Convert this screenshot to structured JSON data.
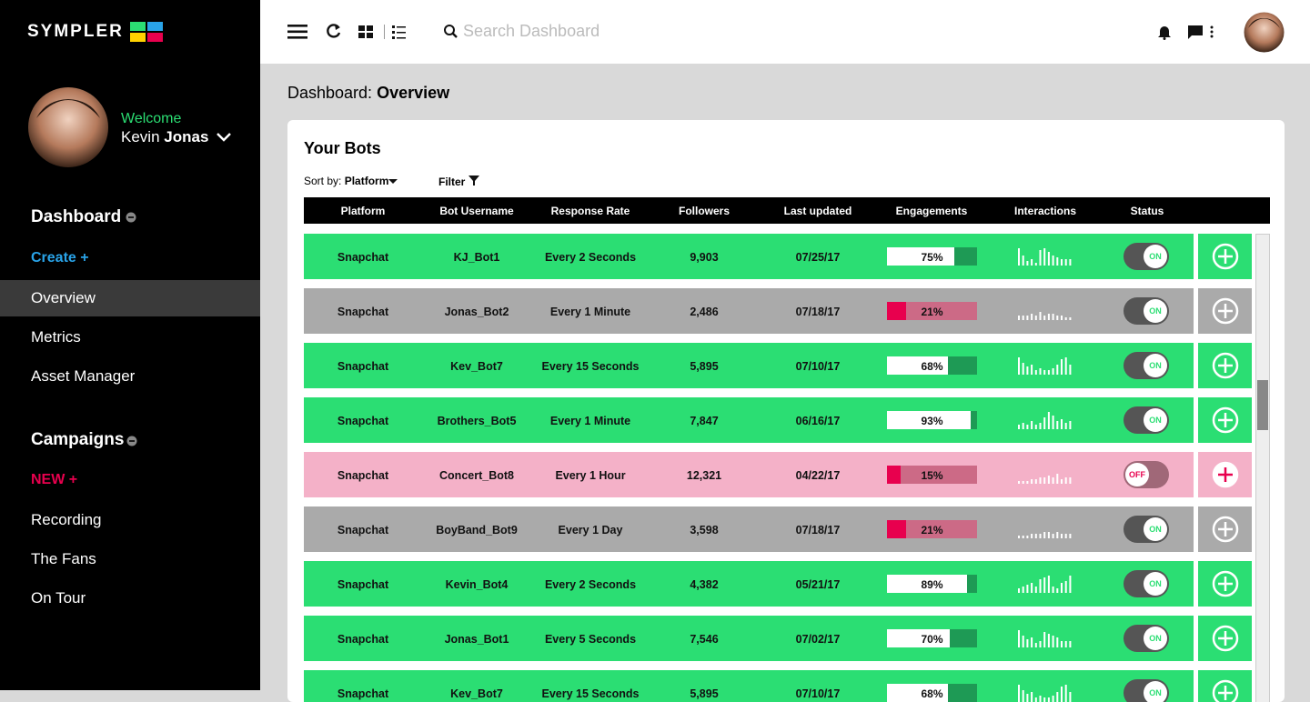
{
  "brand": "SYMPLER",
  "user": {
    "greeting": "Welcome",
    "first_name": "Kevin",
    "last_name": "Jonas"
  },
  "nav": {
    "dashboard": {
      "title": "Dashboard",
      "create": "Create +",
      "items": [
        "Overview",
        "Metrics",
        "Asset Manager"
      ]
    },
    "campaigns": {
      "title": "Campaigns",
      "new": "NEW +",
      "items": [
        "Recording",
        "The Fans",
        "On Tour"
      ]
    }
  },
  "search_placeholder": "Search Dashboard",
  "breadcrumb": {
    "prefix": "Dashboard:",
    "page": "Overview"
  },
  "card": {
    "title": "Your Bots",
    "sort_label": "Sort by:",
    "sort_value": "Platform",
    "filter": "Filter"
  },
  "table": {
    "columns": [
      "Platform",
      "Bot Username",
      "Response Rate",
      "Followers",
      "Last updated",
      "Engagements",
      "Interactions",
      "Status"
    ],
    "rows": [
      {
        "platform": "Snapchat",
        "username": "KJ_Bot1",
        "response_rate": "Every 2 Seconds",
        "followers": "9,903",
        "last_updated": "07/25/17",
        "engagement": {
          "value": 75,
          "label": "75%"
        },
        "interactions": [
          9,
          5,
          2,
          3,
          1,
          8,
          9,
          7,
          5,
          4,
          3,
          3,
          3
        ],
        "status": "ON",
        "color": "#2bde73"
      },
      {
        "platform": "Snapchat",
        "username": "Jonas_Bot2",
        "response_rate": "Every 1 Minute",
        "followers": "2,486",
        "last_updated": "07/18/17",
        "engagement": {
          "value": 21,
          "label": "21%"
        },
        "interactions": [
          2,
          2,
          2,
          3,
          2,
          4,
          2,
          3,
          3,
          2,
          2,
          1,
          1
        ],
        "status": "ON",
        "color": "#aaaaaa"
      },
      {
        "platform": "Snapchat",
        "username": "Kev_Bot7",
        "response_rate": "Every 15 Seconds",
        "followers": "5,895",
        "last_updated": "07/10/17",
        "engagement": {
          "value": 68,
          "label": "68%"
        },
        "interactions": [
          9,
          6,
          4,
          5,
          2,
          3,
          2,
          2,
          3,
          5,
          8,
          9,
          5
        ],
        "status": "ON",
        "color": "#2bde73"
      },
      {
        "platform": "Snapchat",
        "username": "Brothers_Bot5",
        "response_rate": "Every 1 Minute",
        "followers": "7,847",
        "last_updated": "06/16/17",
        "engagement": {
          "value": 93,
          "label": "93%"
        },
        "interactions": [
          2,
          3,
          2,
          4,
          2,
          3,
          6,
          9,
          7,
          4,
          5,
          3,
          4
        ],
        "status": "ON",
        "color": "#2bde73"
      },
      {
        "platform": "Snapchat",
        "username": "Concert_Bot8",
        "response_rate": "Every 1 Hour",
        "followers": "12,321",
        "last_updated": "04/22/17",
        "engagement": {
          "value": 15,
          "label": "15%"
        },
        "interactions": [
          1,
          1,
          1,
          2,
          2,
          3,
          3,
          4,
          3,
          5,
          2,
          3,
          3
        ],
        "status": "OFF",
        "color": "#f4b1c8"
      },
      {
        "platform": "Snapchat",
        "username": "BoyBand_Bot9",
        "response_rate": "Every 1 Day",
        "followers": "3,598",
        "last_updated": "07/18/17",
        "engagement": {
          "value": 21,
          "label": "21%"
        },
        "interactions": [
          1,
          1,
          1,
          2,
          2,
          2,
          3,
          3,
          2,
          3,
          2,
          2,
          2
        ],
        "status": "ON",
        "color": "#aaaaaa"
      },
      {
        "platform": "Snapchat",
        "username": "Kevin_Bot4",
        "response_rate": "Every 2 Seconds",
        "followers": "4,382",
        "last_updated": "05/21/17",
        "engagement": {
          "value": 89,
          "label": "89%"
        },
        "interactions": [
          2,
          3,
          4,
          5,
          3,
          7,
          8,
          9,
          3,
          2,
          5,
          6,
          9
        ],
        "status": "ON",
        "color": "#2bde73"
      },
      {
        "platform": "Snapchat",
        "username": "Jonas_Bot1",
        "response_rate": "Every 5 Seconds",
        "followers": "7,546",
        "last_updated": "07/02/17",
        "engagement": {
          "value": 70,
          "label": "70%"
        },
        "interactions": [
          9,
          6,
          4,
          5,
          2,
          3,
          8,
          7,
          6,
          5,
          3,
          3,
          3
        ],
        "status": "ON",
        "color": "#2bde73"
      },
      {
        "platform": "Snapchat",
        "username": "Kev_Bot7",
        "response_rate": "Every 15 Seconds",
        "followers": "5,895",
        "last_updated": "07/10/17",
        "engagement": {
          "value": 68,
          "label": "68%"
        },
        "interactions": [
          9,
          6,
          4,
          5,
          2,
          3,
          2,
          2,
          3,
          5,
          8,
          9,
          5
        ],
        "status": "ON",
        "color": "#2bde73"
      }
    ]
  }
}
